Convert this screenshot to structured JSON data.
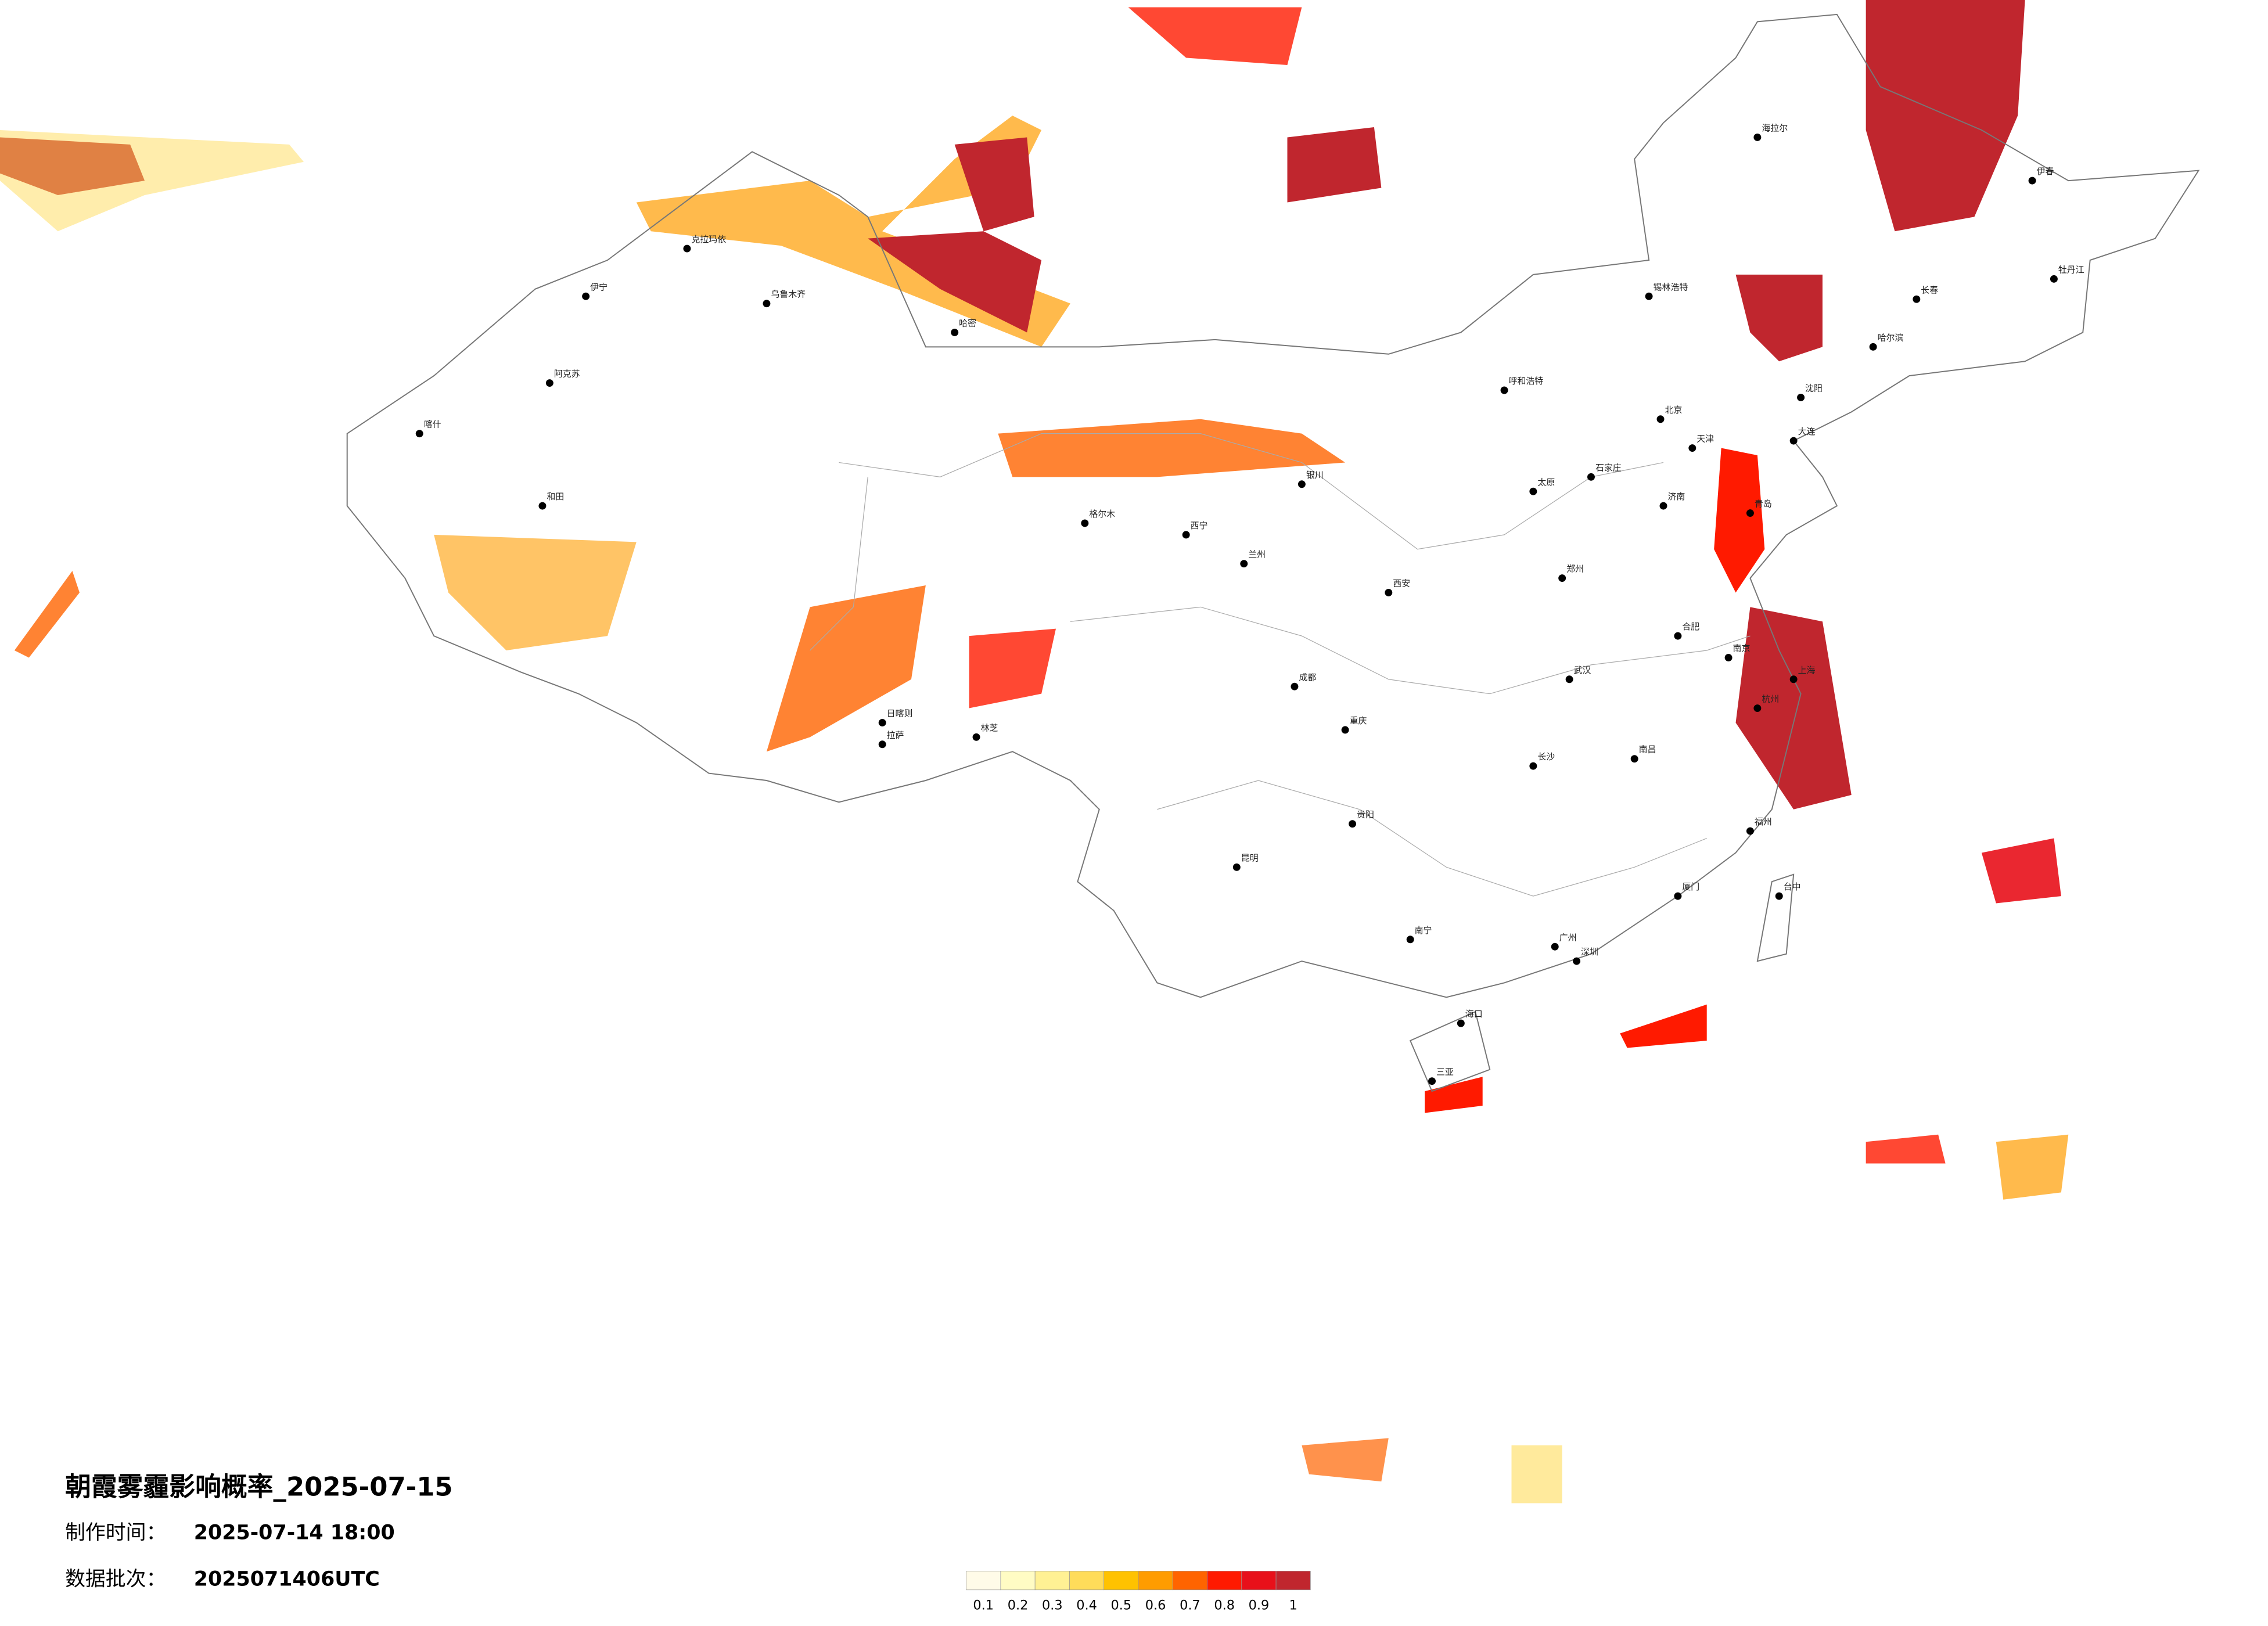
{
  "header": {
    "title": "朝霞雾霾影响概率_2025-07-15"
  },
  "info": [
    {
      "label": "制作时间：",
      "value": "2025-07-14 18:00"
    },
    {
      "label": "数据批次：",
      "value": "2025071406UTC"
    }
  ],
  "legend": {
    "ticks": [
      0.1,
      0.2,
      0.3,
      0.4,
      0.5,
      0.6,
      0.7,
      0.8,
      0.9,
      1
    ],
    "colors": [
      "#fffbe8",
      "#fffcc4",
      "#fff194",
      "#ffdc5a",
      "#ffc200",
      "#ff9c00",
      "#ff6400",
      "#ff1a00",
      "#e8101a",
      "#c0262e"
    ]
  },
  "cities": [
    "北京",
    "天津",
    "上海",
    "杭州",
    "南京",
    "武汉",
    "长沙",
    "广州",
    "深圳",
    "重庆",
    "成都",
    "西安",
    "兰州",
    "西宁",
    "拉萨",
    "乌鲁木齐",
    "哈尔滨",
    "长春",
    "沈阳",
    "海口",
    "台中",
    "昆明",
    "贵阳",
    "南宁",
    "福州",
    "南昌",
    "郑州",
    "济南",
    "太原",
    "石家庄",
    "呼和浩特",
    "银川",
    "海拉尔",
    "喀什",
    "和田",
    "伊宁",
    "锡林浩特",
    "牡丹江",
    "伊春",
    "阿克苏",
    "克拉玛依",
    "哈密",
    "格尔木",
    "日喀则",
    "林芝",
    "大连",
    "青岛",
    "合肥",
    "厦门",
    "三亚"
  ]
}
